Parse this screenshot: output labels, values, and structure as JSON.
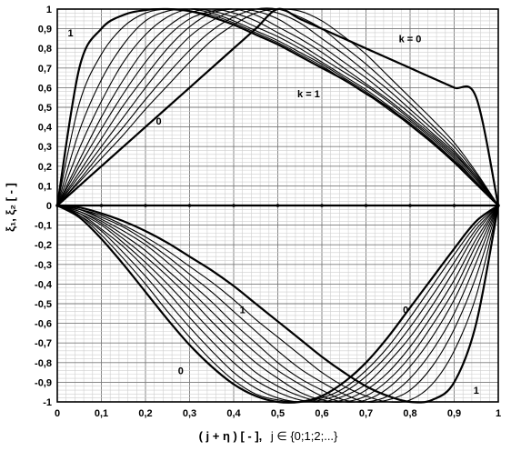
{
  "chart_data": {
    "type": "line",
    "xlim": [
      0,
      1
    ],
    "ylim": [
      -1,
      1
    ],
    "x_ticks": [
      "0",
      "0,1",
      "0,2",
      "0,3",
      "0,4",
      "0,5",
      "0,6",
      "0,7",
      "0,8",
      "0,9",
      "1"
    ],
    "y_ticks": [
      "1",
      "0,9",
      "0,8",
      "0,7",
      "0,6",
      "0,5",
      "0,4",
      "0,3",
      "0,2",
      "0,1",
      "0",
      "-0,1",
      "-0,2",
      "-0,3",
      "-0,4",
      "-0,5",
      "-0,6",
      "-0,7",
      "-0,8",
      "-0,9",
      "-1"
    ],
    "xlabel": {
      "main": "( j + η ) [ - ],",
      "domain": "j ∈ {0;1;2;...}"
    },
    "ylabel": "ξ₁, ξ₂ [ - ]",
    "grid": true,
    "x": [
      0,
      0.05,
      0.1,
      0.15,
      0.2,
      0.25,
      0.3,
      0.35,
      0.4,
      0.45,
      0.5,
      0.55,
      0.6,
      0.65,
      0.7,
      0.75,
      0.8,
      0.85,
      0.9,
      0.95,
      1
    ],
    "series": [
      {
        "group": "xi1",
        "k": "1",
        "values": [
          0,
          0.7,
          0.9,
          0.97,
          0.995,
          1.0,
          0.99,
          0.96,
          0.92,
          0.87,
          0.82,
          0.76,
          0.7,
          0.64,
          0.57,
          0.5,
          0.41,
          0.32,
          0.22,
          0.11,
          0
        ]
      },
      {
        "group": "xi1",
        "values": [
          0,
          0.52,
          0.77,
          0.91,
          0.98,
          1.0,
          0.99,
          0.97,
          0.93,
          0.88,
          0.83,
          0.77,
          0.71,
          0.64,
          0.57,
          0.49,
          0.41,
          0.32,
          0.22,
          0.11,
          0
        ]
      },
      {
        "group": "xi1",
        "values": [
          0,
          0.38,
          0.64,
          0.82,
          0.94,
          0.99,
          1.0,
          0.98,
          0.94,
          0.89,
          0.84,
          0.78,
          0.72,
          0.65,
          0.58,
          0.5,
          0.42,
          0.33,
          0.23,
          0.12,
          0
        ]
      },
      {
        "group": "xi1",
        "values": [
          0,
          0.29,
          0.53,
          0.73,
          0.87,
          0.96,
          1.0,
          0.99,
          0.96,
          0.91,
          0.86,
          0.8,
          0.73,
          0.66,
          0.59,
          0.51,
          0.43,
          0.34,
          0.24,
          0.12,
          0
        ]
      },
      {
        "group": "xi1",
        "values": [
          0,
          0.23,
          0.45,
          0.64,
          0.8,
          0.91,
          0.98,
          1.0,
          0.98,
          0.94,
          0.88,
          0.82,
          0.75,
          0.68,
          0.61,
          0.53,
          0.44,
          0.35,
          0.25,
          0.13,
          0
        ]
      },
      {
        "group": "xi1",
        "values": [
          0,
          0.2,
          0.39,
          0.57,
          0.73,
          0.86,
          0.95,
          0.99,
          1.0,
          0.97,
          0.91,
          0.85,
          0.78,
          0.7,
          0.62,
          0.54,
          0.45,
          0.36,
          0.26,
          0.14,
          0
        ]
      },
      {
        "group": "xi1",
        "values": [
          0,
          0.17,
          0.34,
          0.51,
          0.66,
          0.8,
          0.91,
          0.98,
          1.0,
          0.99,
          0.95,
          0.88,
          0.81,
          0.73,
          0.65,
          0.56,
          0.47,
          0.37,
          0.27,
          0.14,
          0
        ]
      },
      {
        "group": "xi1",
        "values": [
          0,
          0.15,
          0.3,
          0.45,
          0.6,
          0.74,
          0.86,
          0.94,
          0.99,
          1.0,
          0.98,
          0.93,
          0.85,
          0.77,
          0.68,
          0.59,
          0.49,
          0.39,
          0.28,
          0.15,
          0
        ]
      },
      {
        "group": "xi1",
        "values": [
          0,
          0.13,
          0.27,
          0.4,
          0.54,
          0.67,
          0.79,
          0.89,
          0.96,
          1.0,
          1.0,
          0.96,
          0.9,
          0.81,
          0.72,
          0.62,
          0.52,
          0.41,
          0.3,
          0.16,
          0
        ]
      },
      {
        "group": "xi1",
        "values": [
          0,
          0.12,
          0.24,
          0.36,
          0.49,
          0.61,
          0.73,
          0.84,
          0.92,
          0.98,
          1.0,
          0.99,
          0.94,
          0.86,
          0.77,
          0.66,
          0.55,
          0.44,
          0.32,
          0.17,
          0
        ]
      },
      {
        "group": "xi1",
        "k": "0",
        "values": [
          0,
          0.1,
          0.2,
          0.3,
          0.4,
          0.5,
          0.6,
          0.7,
          0.8,
          0.9,
          1.0,
          0.95,
          0.9,
          0.85,
          0.8,
          0.75,
          0.7,
          0.65,
          0.6,
          0.55,
          0
        ]
      },
      {
        "group": "xi2",
        "k": "0",
        "values": [
          0,
          -0.06,
          -0.17,
          -0.3,
          -0.44,
          -0.58,
          -0.71,
          -0.82,
          -0.91,
          -0.97,
          -1.0,
          -1.0,
          -0.97,
          -0.9,
          -0.8,
          -0.67,
          -0.52,
          -0.37,
          -0.22,
          -0.08,
          0
        ]
      },
      {
        "group": "xi2",
        "values": [
          0,
          -0.05,
          -0.15,
          -0.27,
          -0.4,
          -0.54,
          -0.67,
          -0.79,
          -0.89,
          -0.96,
          -0.99,
          -1.0,
          -0.98,
          -0.93,
          -0.84,
          -0.72,
          -0.57,
          -0.41,
          -0.25,
          -0.1,
          0
        ]
      },
      {
        "group": "xi2",
        "values": [
          0,
          -0.05,
          -0.13,
          -0.24,
          -0.36,
          -0.49,
          -0.62,
          -0.74,
          -0.85,
          -0.93,
          -0.98,
          -1.0,
          -0.99,
          -0.95,
          -0.87,
          -0.76,
          -0.62,
          -0.46,
          -0.29,
          -0.12,
          0
        ]
      },
      {
        "group": "xi2",
        "values": [
          0,
          -0.04,
          -0.12,
          -0.21,
          -0.32,
          -0.44,
          -0.57,
          -0.69,
          -0.8,
          -0.89,
          -0.95,
          -0.99,
          -1.0,
          -0.97,
          -0.91,
          -0.8,
          -0.67,
          -0.51,
          -0.33,
          -0.14,
          0
        ]
      },
      {
        "group": "xi2",
        "values": [
          0,
          -0.04,
          -0.1,
          -0.19,
          -0.29,
          -0.4,
          -0.52,
          -0.64,
          -0.75,
          -0.85,
          -0.92,
          -0.97,
          -1.0,
          -0.99,
          -0.94,
          -0.85,
          -0.72,
          -0.56,
          -0.38,
          -0.17,
          0
        ]
      },
      {
        "group": "xi2",
        "values": [
          0,
          -0.03,
          -0.09,
          -0.17,
          -0.26,
          -0.36,
          -0.47,
          -0.59,
          -0.7,
          -0.8,
          -0.88,
          -0.95,
          -0.99,
          -1.0,
          -0.97,
          -0.89,
          -0.77,
          -0.61,
          -0.43,
          -0.2,
          0
        ]
      },
      {
        "group": "xi2",
        "values": [
          0,
          -0.03,
          -0.08,
          -0.15,
          -0.23,
          -0.33,
          -0.43,
          -0.54,
          -0.65,
          -0.75,
          -0.84,
          -0.91,
          -0.97,
          -1.0,
          -0.99,
          -0.93,
          -0.82,
          -0.67,
          -0.48,
          -0.24,
          0
        ]
      },
      {
        "group": "xi2",
        "values": [
          0,
          -0.02,
          -0.07,
          -0.13,
          -0.2,
          -0.29,
          -0.39,
          -0.49,
          -0.6,
          -0.7,
          -0.8,
          -0.88,
          -0.94,
          -0.99,
          -1.0,
          -0.97,
          -0.88,
          -0.74,
          -0.55,
          -0.29,
          0
        ]
      },
      {
        "group": "xi2",
        "values": [
          0,
          -0.02,
          -0.06,
          -0.11,
          -0.18,
          -0.26,
          -0.35,
          -0.44,
          -0.54,
          -0.64,
          -0.74,
          -0.83,
          -0.9,
          -0.96,
          -1.0,
          -0.99,
          -0.94,
          -0.82,
          -0.63,
          -0.36,
          0
        ]
      },
      {
        "group": "xi2",
        "values": [
          0,
          -0.02,
          -0.05,
          -0.1,
          -0.16,
          -0.23,
          -0.31,
          -0.39,
          -0.48,
          -0.58,
          -0.67,
          -0.76,
          -0.85,
          -0.92,
          -0.97,
          -1.0,
          -0.99,
          -0.91,
          -0.74,
          -0.46,
          0
        ]
      },
      {
        "group": "xi2",
        "k": "1",
        "values": [
          0,
          -0.01,
          -0.04,
          -0.08,
          -0.13,
          -0.19,
          -0.26,
          -0.33,
          -0.41,
          -0.5,
          -0.59,
          -0.68,
          -0.77,
          -0.85,
          -0.92,
          -0.97,
          -1.0,
          -0.99,
          -0.9,
          -0.6,
          0
        ]
      }
    ],
    "annotations": [
      {
        "text": "1",
        "x": 0.03,
        "y": 0.88
      },
      {
        "text": "0",
        "x": 0.23,
        "y": 0.43
      },
      {
        "text": "k = 1",
        "x": 0.57,
        "y": 0.57
      },
      {
        "text": "k = 0",
        "x": 0.8,
        "y": 0.85
      },
      {
        "text": "1",
        "x": 0.42,
        "y": -0.53
      },
      {
        "text": "0",
        "x": 0.28,
        "y": -0.84
      },
      {
        "text": "0",
        "x": 0.79,
        "y": -0.53
      },
      {
        "text": "1",
        "x": 0.95,
        "y": -0.94
      }
    ]
  }
}
